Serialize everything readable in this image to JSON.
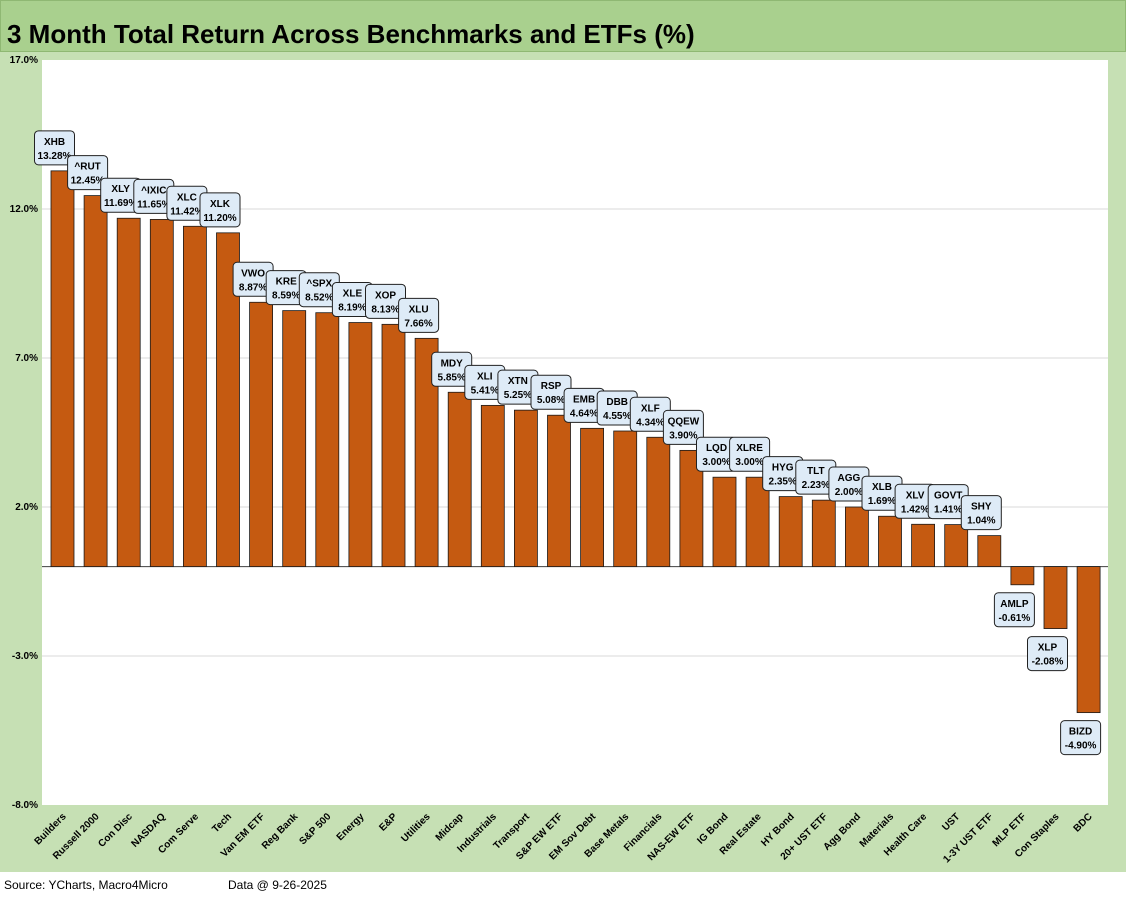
{
  "title": "3 Month Total Return Across Benchmarks and ETFs (%)",
  "footer": {
    "source": "Source: YCharts, Macro4Micro",
    "as_of": "Data @ 9-26-2025"
  },
  "colors": {
    "title_bg": "#a9d08e",
    "chart_bg": "#c6e0b4",
    "plot_bg": "#ffffff",
    "bar": "#c55a11",
    "bar_edge": "#1a1a1a",
    "label_bg": "#deebf7",
    "gridline": "#d9d9d9"
  },
  "chart_data": {
    "type": "bar",
    "title": "3 Month Total Return Across Benchmarks and ETFs (%)",
    "xlabel": "",
    "ylabel": "",
    "ylim": [
      -8.0,
      17.0
    ],
    "yticks": [
      "17.0%",
      "12.0%",
      "7.0%",
      "2.0%",
      "-3.0%",
      "-8.0%"
    ],
    "grid": true,
    "categories": [
      "Builders",
      "Russell 2000",
      "Con Disc",
      "NASDAQ",
      "Com Serve",
      "Tech",
      "Van EM ETF",
      "Reg Bank",
      "S&P 500",
      "Energy",
      "E&P",
      "Utilities",
      "Midcap",
      "Industrials",
      "Transport",
      "S&P EW ETF",
      "EM Sov Debt",
      "Base Metals",
      "Financials",
      "NAS-EW ETF",
      "IG Bond",
      "Real Estate",
      "HY Bond",
      "20+ UST ETF",
      "Agg Bond",
      "Materials",
      "Health Care",
      "UST",
      "1-3Y UST ETF",
      "MLP ETF",
      "Con Staples",
      "BDC"
    ],
    "tickers": [
      "XHB",
      "^RUT",
      "XLY",
      "^IXIC",
      "XLC",
      "XLK",
      "VWO",
      "KRE",
      "^SPX",
      "XLE",
      "XOP",
      "XLU",
      "MDY",
      "XLI",
      "XTN",
      "RSP",
      "EMB",
      "DBB",
      "XLF",
      "QQEW",
      "LQD",
      "XLRE",
      "HYG",
      "TLT",
      "AGG",
      "XLB",
      "XLV",
      "GOVT",
      "SHY",
      "AMLP",
      "XLP",
      "BIZD"
    ],
    "value_labels": [
      "13.28%",
      "12.45%",
      "11.69%",
      "11.65%",
      "11.42%",
      "11.20%",
      "8.87%",
      "8.59%",
      "8.52%",
      "8.19%",
      "8.13%",
      "7.66%",
      "5.85%",
      "5.41%",
      "5.25%",
      "5.08%",
      "4.64%",
      "4.55%",
      "4.34%",
      "3.90%",
      "3.00%",
      "3.00%",
      "2.35%",
      "2.23%",
      "2.00%",
      "1.69%",
      "1.42%",
      "1.41%",
      "1.04%",
      "-0.61%",
      "-2.08%",
      "-4.90%"
    ],
    "values": [
      13.28,
      12.45,
      11.69,
      11.65,
      11.42,
      11.2,
      8.87,
      8.59,
      8.52,
      8.19,
      8.13,
      7.66,
      5.85,
      5.41,
      5.25,
      5.08,
      4.64,
      4.55,
      4.34,
      3.9,
      3.0,
      3.0,
      2.35,
      2.23,
      2.0,
      1.69,
      1.42,
      1.41,
      1.04,
      -0.61,
      -2.08,
      -4.9
    ]
  }
}
